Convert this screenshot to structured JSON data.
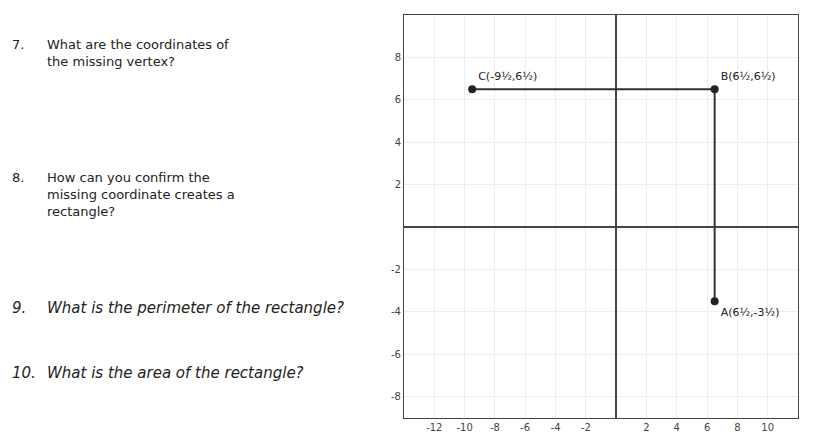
{
  "chart_data": {
    "type": "scatter",
    "series": [
      {
        "type": "line",
        "color": "#333333",
        "x": [
          -9.5,
          6.5,
          6.5
        ],
        "values": [
          6.5,
          6.5,
          -3.5
        ]
      },
      {
        "type": "scatter",
        "color": "#222222",
        "x": [
          6.5,
          6.5,
          -9.5
        ],
        "values": [
          -3.5,
          6.5,
          6.5
        ],
        "labels": [
          "A(6½,-3½)",
          "B(6½,6½)",
          "C(-9½,6½)"
        ]
      }
    ],
    "annotations": [
      [
        "7.",
        "What are the coordinates of\nthe missing vertex?"
      ],
      [
        "8.",
        "How can you confirm the\nmissing coordinate creates a\nrectangle?"
      ],
      [
        "9.",
        "What is the perimeter of the rectangle?"
      ],
      [
        "10.",
        "What is the area of the rectangle?"
      ]
    ],
    "xlim": [
      -14,
      12
    ],
    "ylim": [
      -9,
      10
    ],
    "xticks": [
      -12,
      -10,
      -8,
      -6,
      -4,
      -2,
      2,
      4,
      6,
      8,
      10
    ],
    "yticks": [
      -8,
      -6,
      -4,
      -2,
      2,
      4,
      6,
      8
    ],
    "grid": true
  }
}
